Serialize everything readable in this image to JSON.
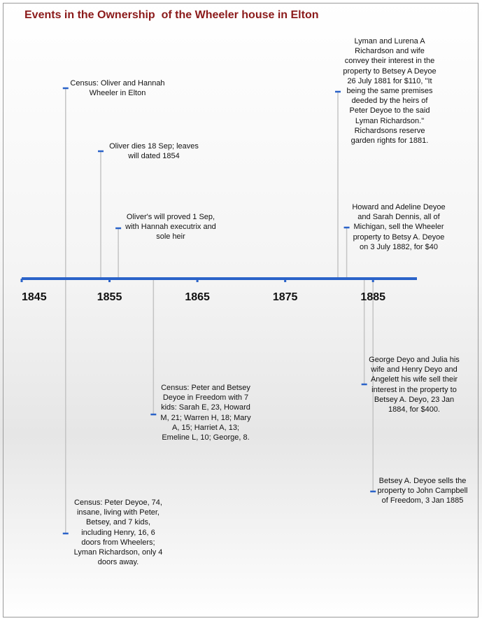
{
  "chart_data": {
    "type": "timeline",
    "title": "Events in the Ownership  of the Wheeler house in Elton",
    "xlim": [
      1845,
      1890
    ],
    "xticks": [
      1845,
      1855,
      1865,
      1875,
      1885
    ],
    "color": "#2b63c9",
    "events": [
      {
        "x": 1850,
        "text": "Census: Oliver and Hannah\nWheeler in Elton"
      },
      {
        "x": 1854,
        "text": "Oliver dies 18 Sep; leaves\nwill dated 1854"
      },
      {
        "x": 1856,
        "text": "Oliver's will proved 1 Sep,\nwith Hannah executrix and\nsole heir"
      },
      {
        "x": 1860,
        "text": "Census: Peter and Betsey\nDeyoe in Freedom with 7\nkids: Sarah E, 23, Howard\nM, 21; Warren H, 18; Mary\nA, 15; Harriet A, 13;\nEmeline L, 10; George, 8."
      },
      {
        "x": 1850,
        "text": "Census: Peter Deyoe, 74,\ninsane, living with Peter,\nBetsey, and 7 kids,\nincluding Henry, 16,  6\ndoors from Wheelers;\nLyman Richardson, only 4\ndoors away."
      },
      {
        "x": 1881,
        "text": "Lyman and Lurena A\nRichardson and wife\nconvey their interest in the\nproperty to Betsey A Deyoe\n26 July 1881 for $110, \"It\nbeing the same premises\ndeeded by the heirs of\nPeter Deyoe to the said\nLyman Richardson.\"\nRichardsons reserve\ngarden rights for 1881."
      },
      {
        "x": 1882,
        "text": "Howard and Adeline Deyoe\nand Sarah Dennis, all of\nMichigan, sell  the Wheeler\nproperty to Betsy A. Deyoe\non 3 July 1882, for $40"
      },
      {
        "x": 1884,
        "text": "George Deyo and Julia his\nwife and Henry Deyo and\nAngelett his wife sell their\ninterest in the property to\nBetsey A. Deyo, 23 Jan\n1884, for $400."
      },
      {
        "x": 1885,
        "text": "Betsey A. Deyoe sells the\nproperty to John Campbell\nof Freedom, 3 Jan 1885"
      }
    ]
  }
}
